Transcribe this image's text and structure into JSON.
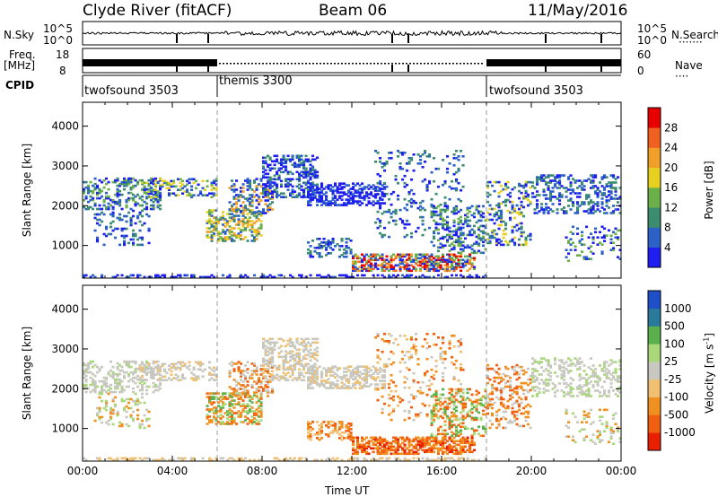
{
  "header": {
    "station": "Clyde River (fitACF)",
    "beam": "Beam 06",
    "date": "11/May/2016"
  },
  "panels": {
    "nsky": {
      "label": "N.Sky",
      "ticks_left": [
        "10^5",
        "10^0"
      ],
      "ticks_right": [
        "10^5",
        "10^0"
      ],
      "right_label": "N.Search"
    },
    "freq": {
      "label_top": "Freq.",
      "label_unit": "[MHz]",
      "ticks_left": [
        "18",
        "8"
      ],
      "ticks_right": [
        "60",
        "0"
      ],
      "right_label": "Nave"
    },
    "cpid": {
      "label": "CPID",
      "modes": [
        {
          "name": "twofsound 3503",
          "start_hour": 0,
          "end_hour": 6
        },
        {
          "name": "themis 3300",
          "start_hour": 6,
          "end_hour": 18
        },
        {
          "name": "twofsound 3503",
          "start_hour": 18,
          "end_hour": 24
        }
      ]
    }
  },
  "chart_data": [
    {
      "type": "heatmap",
      "quantity": "Power",
      "ylabel": "Slant Range [km]",
      "xlabel": "",
      "ylim": [
        180,
        4600
      ],
      "xlim": [
        0,
        24
      ],
      "y_ticks": [
        "1000",
        "2000",
        "3000",
        "4000"
      ],
      "colorbar_label": "Power [dB]",
      "colorbar_ticks": [
        "4",
        "8",
        "12",
        "16",
        "20",
        "24",
        "28"
      ],
      "colorbar_colors": [
        "#1e1ef0",
        "#2c62c8",
        "#3c8c70",
        "#6cb04a",
        "#e8d020",
        "#f0a028",
        "#f06020",
        "#e80000"
      ]
    },
    {
      "type": "heatmap",
      "quantity": "Velocity",
      "ylabel": "Slant Range [km]",
      "xlabel": "Time UT",
      "ylim": [
        180,
        4600
      ],
      "xlim": [
        0,
        24
      ],
      "y_ticks": [
        "1000",
        "2000",
        "3000",
        "4000"
      ],
      "x_ticks": [
        "00:00",
        "04:00",
        "08:00",
        "12:00",
        "16:00",
        "20:00",
        "00:00"
      ],
      "colorbar_label": "Velocity [m s^-1]",
      "colorbar_ticks": [
        "1000",
        "500",
        "100",
        "25",
        "-25",
        "-100",
        "-500",
        "-1000"
      ],
      "colorbar_colors": [
        "#1f4fc8",
        "#2a7a9c",
        "#5ab04a",
        "#a8d878",
        "#c8c8c0",
        "#f0c070",
        "#f09020",
        "#f06010",
        "#e82000"
      ]
    }
  ]
}
